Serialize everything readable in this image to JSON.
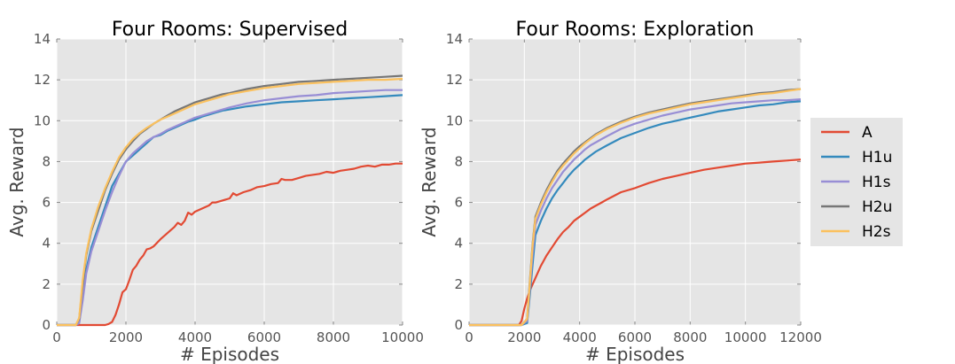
{
  "chart_data": [
    {
      "type": "line",
      "title": "Four Rooms: Supervised",
      "xlabel": "# Episodes",
      "ylabel": "Avg. Reward",
      "xlim": [
        0,
        10000
      ],
      "ylim": [
        0,
        14
      ],
      "xticks": [
        "0",
        "2000",
        "4000",
        "6000",
        "8000",
        "10000"
      ],
      "yticks": [
        "0",
        "2",
        "4",
        "6",
        "8",
        "10",
        "12",
        "14"
      ],
      "grid": true,
      "series": [
        {
          "name": "A",
          "color": "#e24a33",
          "x": [
            0,
            1400,
            1500,
            1600,
            1700,
            1800,
            1900,
            2000,
            2100,
            2200,
            2300,
            2400,
            2500,
            2600,
            2700,
            2800,
            3000,
            3200,
            3400,
            3500,
            3600,
            3700,
            3800,
            3900,
            4000,
            4200,
            4400,
            4500,
            4600,
            4800,
            5000,
            5100,
            5200,
            5400,
            5600,
            5800,
            6000,
            6200,
            6400,
            6500,
            6600,
            6800,
            7000,
            7200,
            7400,
            7600,
            7800,
            8000,
            8200,
            8400,
            8600,
            8800,
            9000,
            9200,
            9400,
            9600,
            9800,
            10000
          ],
          "y": [
            0,
            0,
            0.05,
            0.15,
            0.5,
            1.0,
            1.6,
            1.75,
            2.2,
            2.7,
            2.9,
            3.2,
            3.4,
            3.7,
            3.75,
            3.85,
            4.2,
            4.5,
            4.8,
            5.0,
            4.9,
            5.1,
            5.5,
            5.4,
            5.55,
            5.7,
            5.85,
            6.0,
            6.0,
            6.1,
            6.2,
            6.45,
            6.35,
            6.5,
            6.6,
            6.75,
            6.8,
            6.9,
            6.95,
            7.15,
            7.1,
            7.1,
            7.2,
            7.3,
            7.35,
            7.4,
            7.5,
            7.45,
            7.55,
            7.6,
            7.65,
            7.75,
            7.8,
            7.75,
            7.85,
            7.85,
            7.9,
            7.9
          ]
        },
        {
          "name": "H1u",
          "color": "#348abd",
          "x": [
            0,
            550,
            650,
            750,
            850,
            1000,
            1200,
            1400,
            1600,
            1800,
            2000,
            2200,
            2400,
            2600,
            2800,
            3000,
            3200,
            3400,
            3600,
            3800,
            4000,
            4200,
            4400,
            4600,
            4800,
            5000,
            5500,
            6000,
            6500,
            7000,
            7500,
            8000,
            8500,
            9000,
            9500,
            10000
          ],
          "y": [
            0,
            0,
            0.1,
            1.5,
            2.7,
            3.8,
            4.8,
            5.8,
            6.8,
            7.4,
            8.0,
            8.3,
            8.6,
            8.9,
            9.2,
            9.3,
            9.5,
            9.65,
            9.8,
            9.95,
            10.05,
            10.2,
            10.3,
            10.4,
            10.5,
            10.55,
            10.7,
            10.8,
            10.9,
            10.95,
            11.0,
            11.05,
            11.1,
            11.15,
            11.2,
            11.25
          ]
        },
        {
          "name": "H1s",
          "color": "#988ed5",
          "x": [
            0,
            550,
            650,
            750,
            850,
            1000,
            1200,
            1400,
            1600,
            1800,
            2000,
            2200,
            2400,
            2600,
            2800,
            3000,
            3200,
            3400,
            3600,
            3800,
            4000,
            4200,
            4400,
            4600,
            4800,
            5000,
            5500,
            6000,
            6500,
            7000,
            7500,
            8000,
            8500,
            9000,
            9500,
            10000
          ],
          "y": [
            0,
            0,
            0.1,
            1.2,
            2.5,
            3.6,
            4.6,
            5.6,
            6.5,
            7.3,
            8.0,
            8.4,
            8.7,
            9.0,
            9.2,
            9.35,
            9.55,
            9.7,
            9.85,
            10.0,
            10.15,
            10.25,
            10.35,
            10.45,
            10.55,
            10.65,
            10.85,
            11.0,
            11.1,
            11.2,
            11.25,
            11.35,
            11.4,
            11.45,
            11.5,
            11.5
          ]
        },
        {
          "name": "H2u",
          "color": "#777777",
          "x": [
            0,
            550,
            650,
            750,
            850,
            1000,
            1200,
            1400,
            1600,
            1800,
            2000,
            2200,
            2400,
            2600,
            2800,
            3000,
            3200,
            3400,
            3600,
            3800,
            4000,
            4200,
            4400,
            4600,
            4800,
            5000,
            5500,
            6000,
            6500,
            7000,
            7500,
            8000,
            8500,
            9000,
            9500,
            10000
          ],
          "y": [
            0,
            0,
            0.3,
            2.0,
            3.4,
            4.6,
            5.6,
            6.6,
            7.4,
            8.1,
            8.6,
            9.0,
            9.35,
            9.6,
            9.85,
            10.05,
            10.25,
            10.45,
            10.6,
            10.75,
            10.9,
            11.0,
            11.1,
            11.2,
            11.3,
            11.35,
            11.55,
            11.7,
            11.8,
            11.9,
            11.95,
            12.0,
            12.05,
            12.1,
            12.15,
            12.2
          ]
        },
        {
          "name": "H2s",
          "color": "#fbc15e",
          "x": [
            0,
            550,
            650,
            750,
            850,
            1000,
            1200,
            1400,
            1600,
            1800,
            2000,
            2200,
            2400,
            2600,
            2800,
            3000,
            3200,
            3400,
            3600,
            3800,
            4000,
            4200,
            4400,
            4600,
            4800,
            5000,
            5500,
            6000,
            6500,
            7000,
            7500,
            8000,
            8500,
            9000,
            9500,
            10000
          ],
          "y": [
            0,
            0,
            0.35,
            2.2,
            3.5,
            4.7,
            5.8,
            6.7,
            7.5,
            8.2,
            8.7,
            9.1,
            9.4,
            9.65,
            9.85,
            10.05,
            10.2,
            10.35,
            10.5,
            10.65,
            10.8,
            10.9,
            11.0,
            11.1,
            11.2,
            11.3,
            11.45,
            11.6,
            11.7,
            11.8,
            11.85,
            11.9,
            11.95,
            12.0,
            12.0,
            12.05
          ]
        }
      ]
    },
    {
      "type": "line",
      "title": "Four Rooms: Exploration",
      "xlabel": "# Episodes",
      "ylabel": "Avg. Reward",
      "xlim": [
        0,
        12000
      ],
      "ylim": [
        0,
        14
      ],
      "xticks": [
        "0",
        "2000",
        "4000",
        "6000",
        "8000",
        "10000",
        "12000"
      ],
      "yticks": [
        "0",
        "2",
        "4",
        "6",
        "8",
        "10",
        "12",
        "14"
      ],
      "grid": true,
      "series": [
        {
          "name": "A",
          "color": "#e24a33",
          "x": [
            0,
            1800,
            1900,
            2000,
            2100,
            2200,
            2400,
            2600,
            2800,
            3000,
            3200,
            3400,
            3600,
            3800,
            4000,
            4200,
            4400,
            4600,
            4800,
            5000,
            5500,
            6000,
            6500,
            7000,
            7500,
            8000,
            8500,
            9000,
            9500,
            10000,
            10500,
            11000,
            11500,
            12000
          ],
          "y": [
            0,
            0,
            0.2,
            0.8,
            1.3,
            1.7,
            2.3,
            2.9,
            3.4,
            3.8,
            4.2,
            4.55,
            4.8,
            5.1,
            5.3,
            5.5,
            5.7,
            5.85,
            6.0,
            6.15,
            6.5,
            6.7,
            6.95,
            7.15,
            7.3,
            7.45,
            7.6,
            7.7,
            7.8,
            7.9,
            7.95,
            8.0,
            8.05,
            8.1
          ]
        },
        {
          "name": "H1u",
          "color": "#348abd",
          "x": [
            0,
            1900,
            2100,
            2200,
            2300,
            2400,
            2600,
            2800,
            3000,
            3200,
            3400,
            3600,
            3800,
            4000,
            4200,
            4400,
            4600,
            4800,
            5000,
            5500,
            6000,
            6500,
            7000,
            7500,
            8000,
            8500,
            9000,
            9500,
            10000,
            10500,
            11000,
            11500,
            12000
          ],
          "y": [
            0,
            0,
            0.1,
            1.5,
            3.0,
            4.4,
            5.1,
            5.7,
            6.2,
            6.6,
            6.95,
            7.3,
            7.6,
            7.85,
            8.1,
            8.3,
            8.5,
            8.65,
            8.8,
            9.15,
            9.4,
            9.65,
            9.85,
            10.0,
            10.15,
            10.3,
            10.45,
            10.55,
            10.65,
            10.75,
            10.8,
            10.9,
            10.95
          ]
        },
        {
          "name": "H1s",
          "color": "#988ed5",
          "x": [
            0,
            1900,
            2100,
            2200,
            2300,
            2400,
            2600,
            2800,
            3000,
            3200,
            3400,
            3600,
            3800,
            4000,
            4200,
            4400,
            4600,
            4800,
            5000,
            5500,
            6000,
            6500,
            7000,
            7500,
            8000,
            8500,
            9000,
            9500,
            10000,
            10500,
            11000,
            11500,
            12000
          ],
          "y": [
            0,
            0,
            0.2,
            1.8,
            3.5,
            4.9,
            5.6,
            6.2,
            6.7,
            7.1,
            7.5,
            7.8,
            8.1,
            8.35,
            8.6,
            8.8,
            8.95,
            9.1,
            9.25,
            9.6,
            9.85,
            10.05,
            10.25,
            10.4,
            10.55,
            10.65,
            10.75,
            10.85,
            10.9,
            10.95,
            11.0,
            11.0,
            11.05
          ]
        },
        {
          "name": "H2u",
          "color": "#777777",
          "x": [
            0,
            1900,
            2100,
            2200,
            2300,
            2400,
            2600,
            2800,
            3000,
            3200,
            3400,
            3600,
            3800,
            4000,
            4200,
            4400,
            4600,
            4800,
            5000,
            5500,
            6000,
            6500,
            7000,
            7500,
            8000,
            8500,
            9000,
            9500,
            10000,
            10500,
            11000,
            11500,
            12000
          ],
          "y": [
            0,
            0,
            0.3,
            2.2,
            4.0,
            5.3,
            6.0,
            6.6,
            7.1,
            7.55,
            7.9,
            8.2,
            8.5,
            8.75,
            8.95,
            9.15,
            9.35,
            9.5,
            9.65,
            9.95,
            10.2,
            10.4,
            10.55,
            10.7,
            10.85,
            10.95,
            11.05,
            11.15,
            11.25,
            11.35,
            11.4,
            11.5,
            11.55
          ]
        },
        {
          "name": "H2s",
          "color": "#fbc15e",
          "x": [
            0,
            1900,
            2100,
            2200,
            2300,
            2400,
            2600,
            2800,
            3000,
            3200,
            3400,
            3600,
            3800,
            4000,
            4200,
            4400,
            4600,
            4800,
            5000,
            5500,
            6000,
            6500,
            7000,
            7500,
            8000,
            8500,
            9000,
            9500,
            10000,
            10500,
            11000,
            11500,
            12000
          ],
          "y": [
            0,
            0,
            0.3,
            2.1,
            3.9,
            5.2,
            5.9,
            6.5,
            7.0,
            7.45,
            7.8,
            8.1,
            8.4,
            8.65,
            8.9,
            9.1,
            9.3,
            9.45,
            9.6,
            9.9,
            10.15,
            10.35,
            10.5,
            10.65,
            10.8,
            10.9,
            11.0,
            11.1,
            11.2,
            11.3,
            11.35,
            11.45,
            11.55
          ]
        }
      ]
    }
  ],
  "legend": {
    "placement": "right",
    "background": "#e5e5e5",
    "items": [
      {
        "label": "A",
        "color": "#e24a33"
      },
      {
        "label": "H1u",
        "color": "#348abd"
      },
      {
        "label": "H1s",
        "color": "#988ed5"
      },
      {
        "label": "H2u",
        "color": "#777777"
      },
      {
        "label": "H2s",
        "color": "#fbc15e"
      }
    ]
  },
  "style": {
    "plot_background": "#e5e5e5",
    "grid_color": "#ffffff"
  }
}
